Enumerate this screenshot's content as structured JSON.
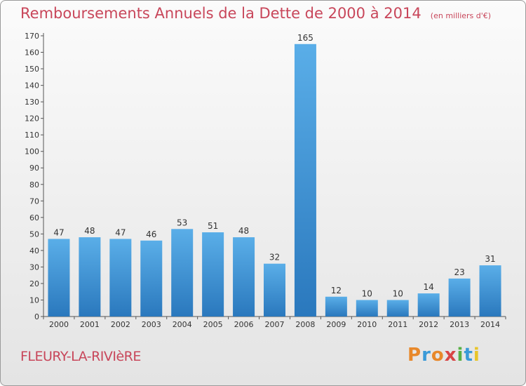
{
  "header": {
    "title": "Remboursements Annuels de la Dette de 2000 à 2014",
    "subtitle": "(en milliers d'€)"
  },
  "footer": {
    "commune": "FLEURY-LA-RIVIèRE",
    "logo_letters": [
      "P",
      "r",
      "o",
      "x",
      "i",
      "t",
      "i"
    ]
  },
  "chart_data": {
    "type": "bar",
    "title": "Remboursements Annuels de la Dette de 2000 à 2014",
    "subtitle": "(en milliers d'€)",
    "xlabel": "",
    "ylabel": "",
    "categories": [
      "2000",
      "2001",
      "2002",
      "2003",
      "2004",
      "2005",
      "2006",
      "2007",
      "2008",
      "2009",
      "2010",
      "2011",
      "2012",
      "2013",
      "2014"
    ],
    "values": [
      47,
      48,
      47,
      46,
      53,
      51,
      48,
      32,
      165,
      12,
      10,
      10,
      14,
      23,
      31
    ],
    "ylim": [
      0,
      170
    ],
    "yticks": [
      0,
      10,
      20,
      30,
      40,
      50,
      60,
      70,
      80,
      90,
      100,
      110,
      120,
      130,
      140,
      150,
      160,
      170
    ],
    "grid": false,
    "legend": "none",
    "bar_color": "#3f8fd6",
    "bar_color_light": "#5aaee8",
    "bar_color_dark": "#2a78bd"
  }
}
